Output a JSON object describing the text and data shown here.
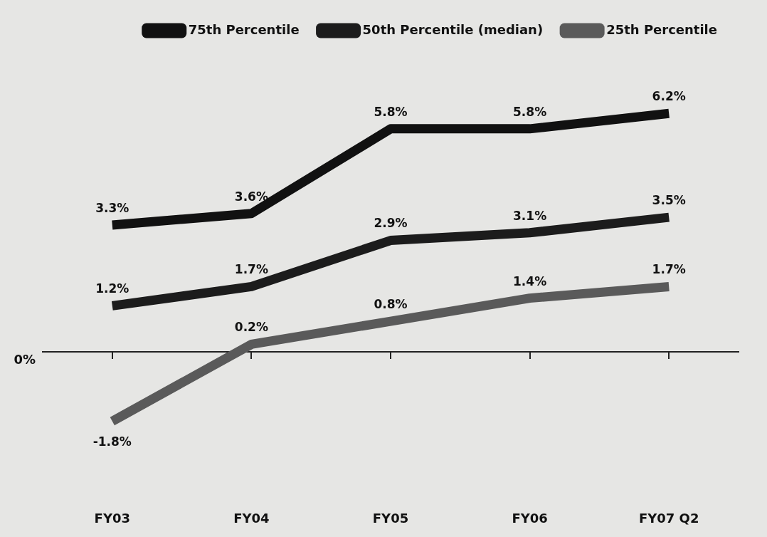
{
  "chart_data": {
    "type": "line",
    "categories": [
      "FY03",
      "FY04",
      "FY05",
      "FY06",
      "FY07 Q2"
    ],
    "series": [
      {
        "name": "75th Percentile",
        "color": "#111111",
        "values": [
          3.3,
          3.6,
          5.8,
          5.8,
          6.2
        ],
        "value_labels": [
          "3.3%",
          "3.6%",
          "5.8%",
          "5.8%",
          "6.2%"
        ]
      },
      {
        "name": "50th Percentile (median)",
        "color": "#1c1c1c",
        "values": [
          1.2,
          1.7,
          2.9,
          3.1,
          3.5
        ],
        "value_labels": [
          "1.2%",
          "1.7%",
          "2.9%",
          "3.1%",
          "3.5%"
        ]
      },
      {
        "name": "25th Percentile",
        "color": "#5a5a5a",
        "values": [
          -1.8,
          0.2,
          0.8,
          1.4,
          1.7
        ],
        "value_labels": [
          "-1.8%",
          "0.2%",
          "0.8%",
          "1.4%",
          "1.7%"
        ]
      }
    ],
    "annotations": [
      "0%"
    ],
    "grid": false,
    "legend": "top",
    "marker": "none",
    "line_style": "solid"
  }
}
